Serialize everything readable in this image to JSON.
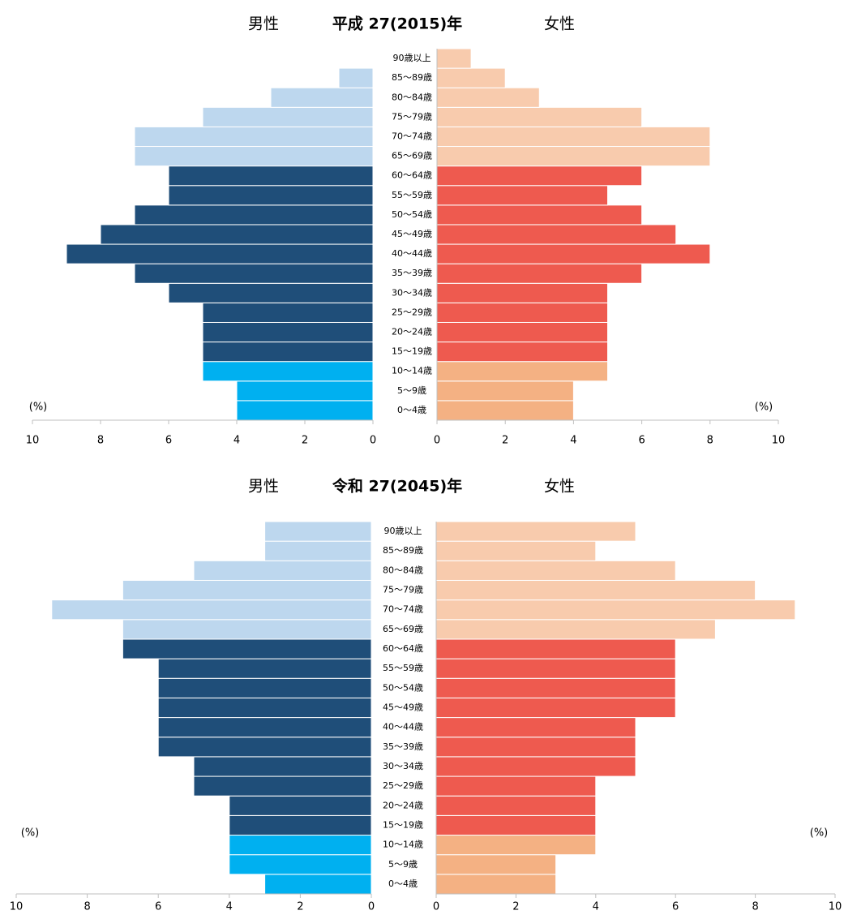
{
  "chart_data": [
    {
      "type": "pyramid",
      "title": "平成 27(2015)年",
      "xlabel": "(%)",
      "categories": [
        "0～4歳",
        "5～9歳",
        "10～14歳",
        "15～19歳",
        "20～24歳",
        "25～29歳",
        "30～34歳",
        "35～39歳",
        "40～44歳",
        "45～49歳",
        "50～54歳",
        "55～59歳",
        "60～64歳",
        "65～69歳",
        "70～74歳",
        "75～79歳",
        "80～84歳",
        "85～89歳",
        "90歳以上"
      ],
      "series": [
        {
          "name": "男性",
          "side": "left",
          "values": [
            4,
            4,
            5,
            5,
            5,
            5,
            6,
            7,
            9,
            8,
            7,
            6,
            6,
            7,
            7,
            5,
            3,
            1,
            0
          ],
          "colors": [
            "#00b0f0",
            "#00b0f0",
            "#00b0f0",
            "#1f4e79",
            "#1f4e79",
            "#1f4e79",
            "#1f4e79",
            "#1f4e79",
            "#1f4e79",
            "#1f4e79",
            "#1f4e79",
            "#1f4e79",
            "#1f4e79",
            "#bdd7ee",
            "#bdd7ee",
            "#bdd7ee",
            "#bdd7ee",
            "#bdd7ee",
            "#bdd7ee"
          ]
        },
        {
          "name": "女性",
          "side": "right",
          "values": [
            4,
            4,
            5,
            5,
            5,
            5,
            5,
            6,
            8,
            7,
            6,
            5,
            6,
            8,
            8,
            6,
            3,
            2,
            1
          ],
          "colors": [
            "#f4b183",
            "#f4b183",
            "#f4b183",
            "#ee5a4f",
            "#ee5a4f",
            "#ee5a4f",
            "#ee5a4f",
            "#ee5a4f",
            "#ee5a4f",
            "#ee5a4f",
            "#ee5a4f",
            "#ee5a4f",
            "#ee5a4f",
            "#f8cbad",
            "#f8cbad",
            "#f8cbad",
            "#f8cbad",
            "#f8cbad",
            "#f8cbad"
          ]
        }
      ],
      "xlim": [
        0,
        10
      ],
      "xticks": [
        0,
        2,
        4,
        6,
        8,
        10
      ]
    },
    {
      "type": "pyramid",
      "title": "令和 27(2045)年",
      "xlabel": "(%)",
      "categories": [
        "0～4歳",
        "5～9歳",
        "10～14歳",
        "15～19歳",
        "20～24歳",
        "25～29歳",
        "30～34歳",
        "35～39歳",
        "40～44歳",
        "45～49歳",
        "50～54歳",
        "55～59歳",
        "60～64歳",
        "65～69歳",
        "70～74歳",
        "75～79歳",
        "80～84歳",
        "85～89歳",
        "90歳以上"
      ],
      "series": [
        {
          "name": "男性",
          "side": "left",
          "values": [
            3,
            4,
            4,
            4,
            4,
            5,
            5,
            6,
            6,
            6,
            6,
            6,
            7,
            7,
            9,
            7,
            5,
            3,
            3
          ],
          "colors": [
            "#00b0f0",
            "#00b0f0",
            "#00b0f0",
            "#1f4e79",
            "#1f4e79",
            "#1f4e79",
            "#1f4e79",
            "#1f4e79",
            "#1f4e79",
            "#1f4e79",
            "#1f4e79",
            "#1f4e79",
            "#1f4e79",
            "#bdd7ee",
            "#bdd7ee",
            "#bdd7ee",
            "#bdd7ee",
            "#bdd7ee",
            "#bdd7ee"
          ]
        },
        {
          "name": "女性",
          "side": "right",
          "values": [
            3,
            3,
            4,
            4,
            4,
            4,
            5,
            5,
            5,
            6,
            6,
            6,
            6,
            7,
            9,
            8,
            6,
            4,
            5
          ],
          "colors": [
            "#f4b183",
            "#f4b183",
            "#f4b183",
            "#ee5a4f",
            "#ee5a4f",
            "#ee5a4f",
            "#ee5a4f",
            "#ee5a4f",
            "#ee5a4f",
            "#ee5a4f",
            "#ee5a4f",
            "#ee5a4f",
            "#ee5a4f",
            "#f8cbad",
            "#f8cbad",
            "#f8cbad",
            "#f8cbad",
            "#f8cbad",
            "#f8cbad"
          ]
        }
      ],
      "xlim": [
        0,
        10
      ],
      "xticks": [
        0,
        2,
        4,
        6,
        8,
        10
      ]
    }
  ]
}
